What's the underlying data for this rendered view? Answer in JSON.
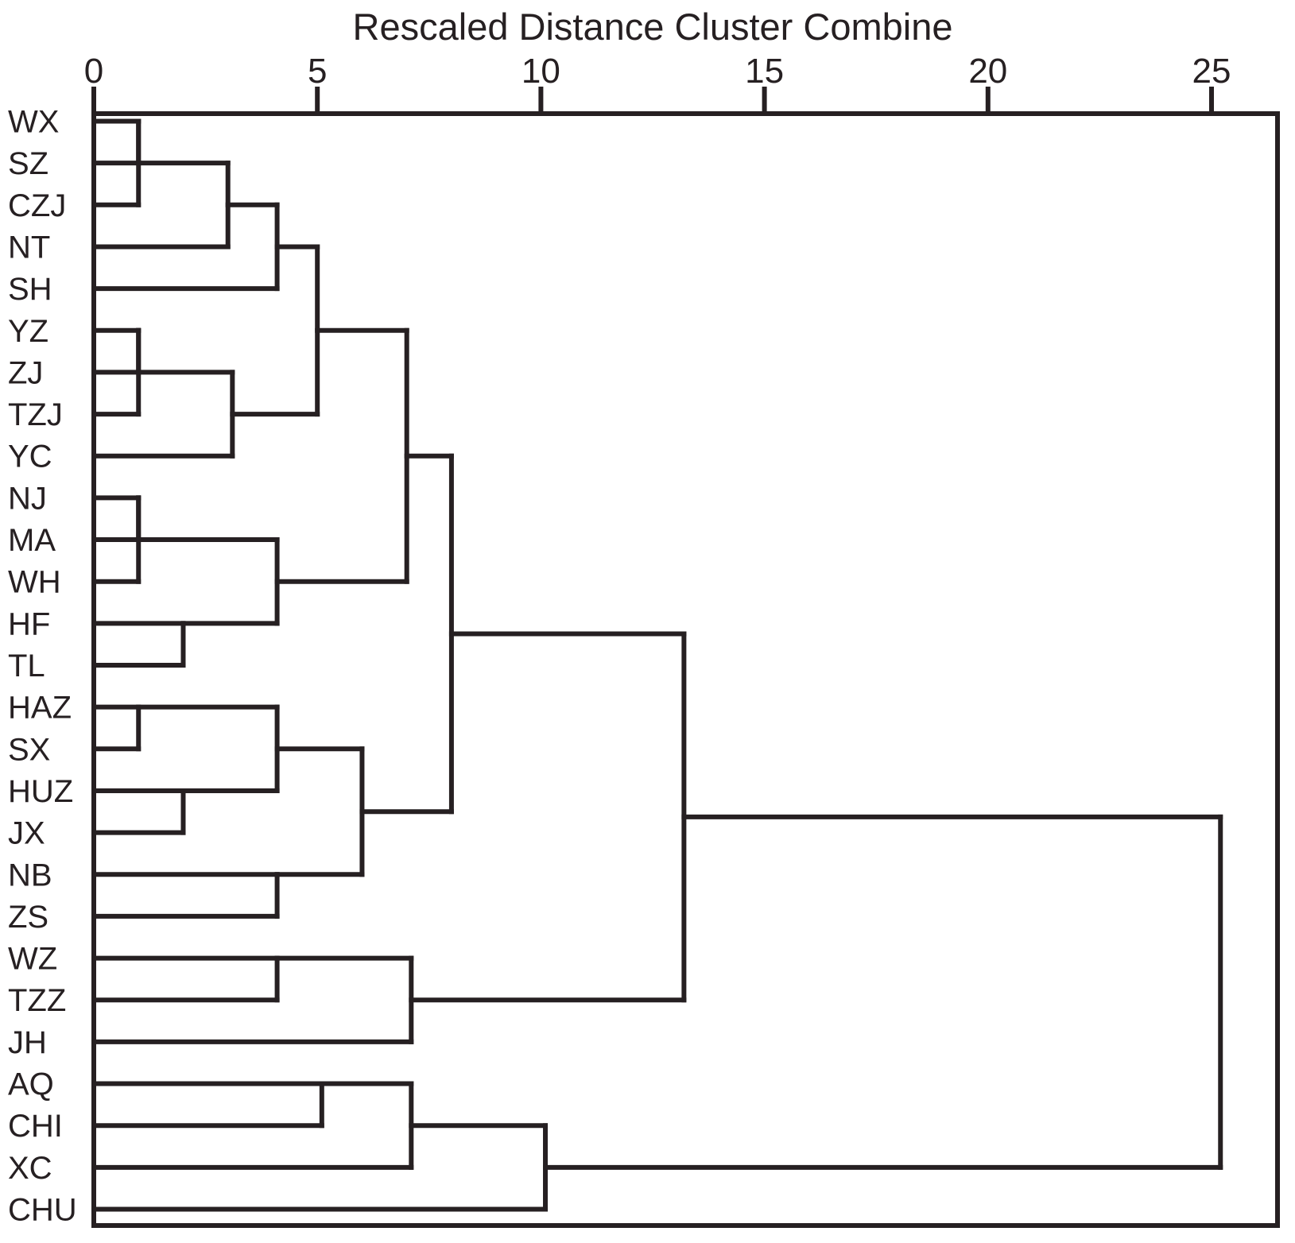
{
  "chart_data": {
    "type": "dendrogram",
    "title": "Rescaled Distance Cluster Combine",
    "orientation": "horizontal",
    "legend_position": "none",
    "grid": false,
    "axis": {
      "position": "top",
      "min": 0,
      "max": 25,
      "ticks": [
        0,
        5,
        10,
        15,
        20,
        25
      ]
    },
    "leaves": [
      "WX",
      "SZ",
      "CZJ",
      "NT",
      "SH",
      "YZ",
      "ZJ",
      "TZJ",
      "YC",
      "NJ",
      "MA",
      "WH",
      "HF",
      "TL",
      "HAZ",
      "SX",
      "HUZ",
      "JX",
      "NB",
      "ZS",
      "WZ",
      "TZZ",
      "JH",
      "AQ",
      "CHI",
      "XC",
      "CHU"
    ],
    "merges": [
      [
        "WX",
        "SZ",
        1.0
      ],
      [
        "#0",
        "CZJ",
        1.0
      ],
      [
        "#1",
        "NT",
        3.0
      ],
      [
        "#2",
        "SH",
        4.1
      ],
      [
        "YZ",
        "ZJ",
        1.0
      ],
      [
        "#4",
        "TZJ",
        1.0
      ],
      [
        "#5",
        "YC",
        3.1
      ],
      [
        "#3",
        "#6",
        5.0
      ],
      [
        "NJ",
        "MA",
        1.0
      ],
      [
        "#8",
        "WH",
        1.0
      ],
      [
        "HF",
        "TL",
        2.0
      ],
      [
        "#9",
        "#10",
        4.1
      ],
      [
        "#7",
        "#11",
        7.0
      ],
      [
        "HAZ",
        "SX",
        1.0
      ],
      [
        "HUZ",
        "JX",
        2.0
      ],
      [
        "#13",
        "#14",
        4.1
      ],
      [
        "NB",
        "ZS",
        4.1
      ],
      [
        "#15",
        "#16",
        6.0
      ],
      [
        "#12",
        "#17",
        8.0
      ],
      [
        "WZ",
        "TZZ",
        4.1
      ],
      [
        "#19",
        "JH",
        7.1
      ],
      [
        "#18",
        "#20",
        13.2
      ],
      [
        "AQ",
        "CHI",
        5.1
      ],
      [
        "#22",
        "XC",
        7.1
      ],
      [
        "#23",
        "CHU",
        10.1
      ],
      [
        "#21",
        "#24",
        25.2
      ]
    ],
    "line_color": "#262022",
    "background_color": "#ffffff"
  }
}
